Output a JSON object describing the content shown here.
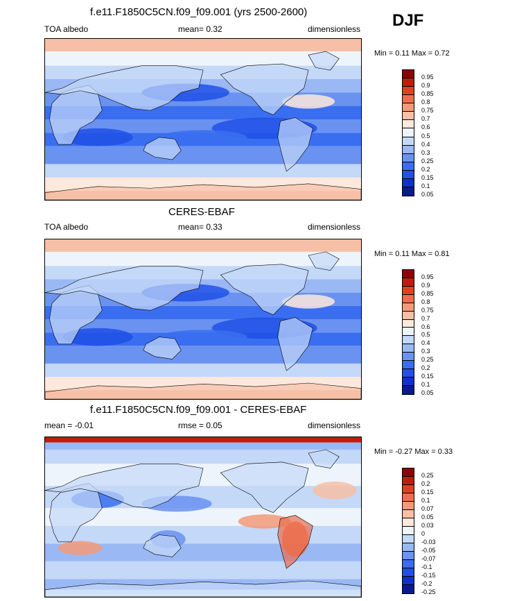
{
  "season": "DJF",
  "colors": {
    "albedo_scale": [
      "#0a1a8c",
      "#1030c8",
      "#2050e6",
      "#3a6ef0",
      "#6a92f0",
      "#9ab8f4",
      "#c4d8f8",
      "#eef4fc",
      "#fde8dc",
      "#f7c0a6",
      "#f29a78",
      "#ec6e4c",
      "#e04020",
      "#c01c0c",
      "#8a0606"
    ],
    "diff_scale": [
      "#0a1a8c",
      "#1030c8",
      "#2050e6",
      "#3a6ef0",
      "#6a92f0",
      "#9ab8f4",
      "#c4d8f8",
      "#eef4fc",
      "#fde8dc",
      "#f7c0a6",
      "#f29a78",
      "#ec6e4c",
      "#e04020",
      "#c01c0c",
      "#8a0606"
    ],
    "land_outline": "#000000"
  },
  "panels": [
    {
      "title": "f.e11.F1850C5CN.f09_f09.001 (yrs 2500-2600)",
      "left_label": "TOA albedo",
      "mid_label": "mean=  0.32",
      "right_label": "dimensionless",
      "minmax": "Min =  0.11 Max =  0.72"
    },
    {
      "title": "CERES-EBAF",
      "left_label": "TOA albedo",
      "mid_label": "mean=  0.33",
      "right_label": "dimensionless",
      "minmax": "Min =  0.11 Max =  0.81"
    },
    {
      "title": "f.e11.F1850C5CN.f09_f09.001 - CERES-EBAF",
      "left_label": "mean =  -0.01",
      "mid_label": "rmse =  0.05",
      "right_label": "dimensionless",
      "minmax": "Min =  -0.27 Max =  0.33"
    }
  ],
  "chart_data": [
    {
      "type": "heatmap",
      "title": "f.e11.F1850C5CN.f09_f09.001 (yrs 2500-2600)",
      "variable": "TOA albedo",
      "units": "dimensionless",
      "mean": 0.32,
      "min": 0.11,
      "max": 0.72,
      "contour_levels": [
        "0.05",
        "0.1",
        "0.15",
        "0.2",
        "0.25",
        "0.3",
        "0.4",
        "0.5",
        "0.6",
        "0.7",
        "0.75",
        "0.8",
        "0.85",
        "0.9",
        "0.95"
      ]
    },
    {
      "type": "heatmap",
      "title": "CERES-EBAF",
      "variable": "TOA albedo",
      "units": "dimensionless",
      "mean": 0.33,
      "min": 0.11,
      "max": 0.81,
      "contour_levels": [
        "0.05",
        "0.1",
        "0.15",
        "0.2",
        "0.25",
        "0.3",
        "0.4",
        "0.5",
        "0.6",
        "0.7",
        "0.75",
        "0.8",
        "0.85",
        "0.9",
        "0.95"
      ]
    },
    {
      "type": "heatmap",
      "title": "f.e11.F1850C5CN.f09_f09.001 - CERES-EBAF",
      "units": "dimensionless",
      "mean": -0.01,
      "rmse": 0.05,
      "min": -0.27,
      "max": 0.33,
      "contour_levels": [
        "-0.25",
        "-0.2",
        "-0.15",
        "-0.1",
        "-0.07",
        "-0.05",
        "-0.03",
        "0",
        "0.03",
        "0.05",
        "0.07",
        "0.1",
        "0.15",
        "0.2",
        "0.25"
      ]
    }
  ]
}
